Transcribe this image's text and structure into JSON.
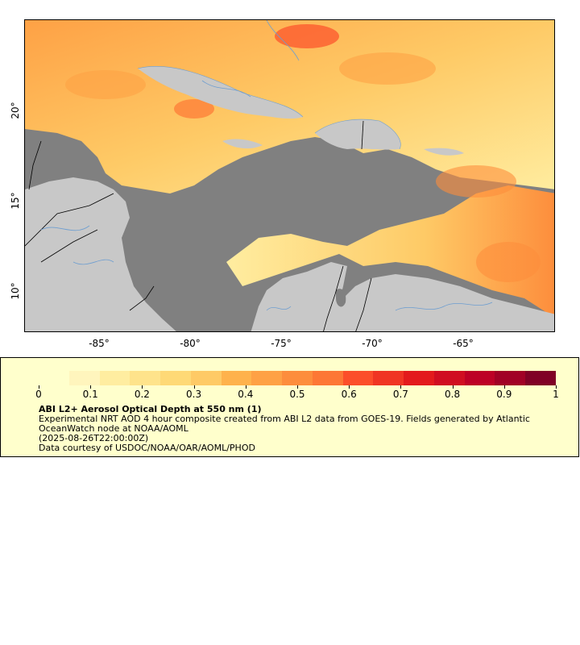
{
  "map": {
    "y_ticks": [
      "20°",
      "15°",
      "10°"
    ],
    "x_ticks": [
      "-85°",
      "-80°",
      "-75°",
      "-70°",
      "-65°"
    ],
    "colors": {
      "ocean_nodata": "#808080",
      "land_nodata": "#c8c8c8",
      "border": "#000000",
      "river": "#6e9ed0"
    }
  },
  "legend": {
    "tick_labels": [
      "0",
      "0.1",
      "0.2",
      "0.3",
      "0.4",
      "0.5",
      "0.6",
      "0.7",
      "0.8",
      "0.9",
      "1"
    ],
    "range": [
      0,
      1
    ],
    "colormap": [
      "#ffffcc",
      "#fff5bd",
      "#ffeda0",
      "#fee38b",
      "#fed976",
      "#feca66",
      "#feb24c",
      "#fea145",
      "#fd8d3c",
      "#fd7735",
      "#fc4e2a",
      "#f03523",
      "#e31a1c",
      "#d00d21",
      "#bd0026",
      "#a10026",
      "#800026"
    ],
    "title": "ABI L2+ Aerosol Optical Depth at 550 nm (1)",
    "description": "Experimental NRT AOD 4 hour composite created from ABI L2 data from GOES-19. Fields generated by Atlantic OceanWatch node at NOAA/AOML",
    "time": "(2025-08-26T22:00:00Z)",
    "credit": "Data courtesy of USDOC/NOAA/OAR/AOML/PHOD"
  }
}
